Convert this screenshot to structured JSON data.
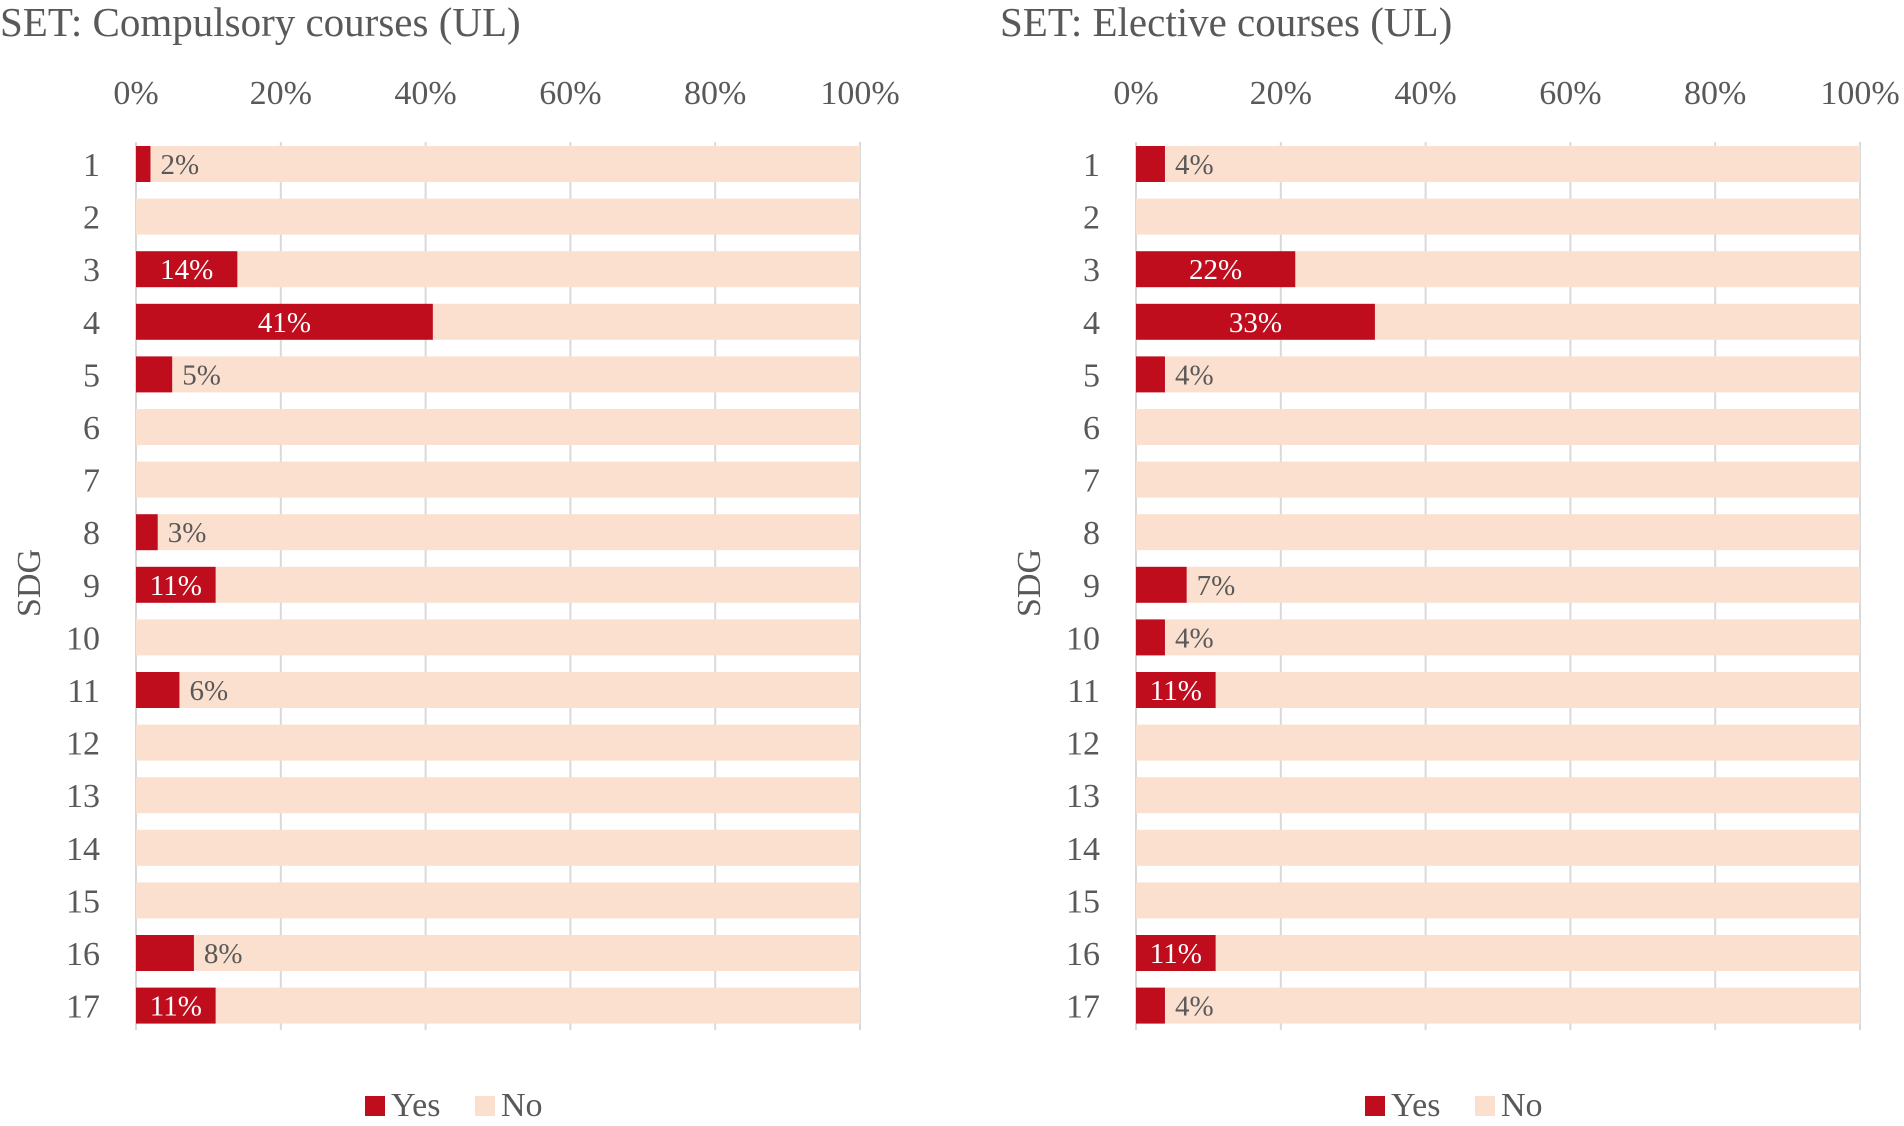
{
  "colors": {
    "yes": "#C00D1E",
    "no": "#FBE0CF",
    "grid": "#D9D9D9",
    "text": "#595959",
    "label_on_bar": "#FFFFFF"
  },
  "chart_data": [
    {
      "type": "bar",
      "orientation": "horizontal",
      "stacked": true,
      "title": "SET: Compulsory courses (UL)",
      "xlabel": "",
      "ylabel": "SDG",
      "xlim": [
        0,
        100
      ],
      "x_ticks": [
        "0%",
        "20%",
        "40%",
        "60%",
        "80%",
        "100%"
      ],
      "categories": [
        "1",
        "2",
        "3",
        "4",
        "5",
        "6",
        "7",
        "8",
        "9",
        "10",
        "11",
        "12",
        "13",
        "14",
        "15",
        "16",
        "17"
      ],
      "series": [
        {
          "name": "Yes",
          "values": [
            2,
            0,
            14,
            41,
            5,
            0,
            0,
            3,
            11,
            0,
            6,
            0,
            0,
            0,
            0,
            8,
            11
          ]
        },
        {
          "name": "No",
          "values": [
            98,
            100,
            86,
            59,
            95,
            100,
            100,
            97,
            89,
            100,
            94,
            100,
            100,
            100,
            100,
            92,
            89
          ]
        }
      ],
      "data_labels": [
        "2%",
        "",
        "14%",
        "41%",
        "5%",
        "",
        "",
        "3%",
        "11%",
        "",
        "6%",
        "",
        "",
        "",
        "",
        "8%",
        "11%"
      ],
      "legend": {
        "position": "bottom",
        "items": [
          "Yes",
          "No"
        ]
      },
      "grid": true
    },
    {
      "type": "bar",
      "orientation": "horizontal",
      "stacked": true,
      "title": "SET: Elective courses (UL)",
      "xlabel": "",
      "ylabel": "SDG",
      "xlim": [
        0,
        100
      ],
      "x_ticks": [
        "0%",
        "20%",
        "40%",
        "60%",
        "80%",
        "100%"
      ],
      "categories": [
        "1",
        "2",
        "3",
        "4",
        "5",
        "6",
        "7",
        "8",
        "9",
        "10",
        "11",
        "12",
        "13",
        "14",
        "15",
        "16",
        "17"
      ],
      "series": [
        {
          "name": "Yes",
          "values": [
            4,
            0,
            22,
            33,
            4,
            0,
            0,
            0,
            7,
            4,
            11,
            0,
            0,
            0,
            0,
            11,
            4
          ]
        },
        {
          "name": "No",
          "values": [
            96,
            100,
            78,
            67,
            96,
            100,
            100,
            100,
            93,
            96,
            89,
            100,
            100,
            100,
            100,
            89,
            96
          ]
        }
      ],
      "data_labels": [
        "4%",
        "",
        "22%",
        "33%",
        "4%",
        "",
        "",
        "",
        "7%",
        "4%",
        "11%",
        "",
        "",
        "",
        "",
        "11%",
        "4%"
      ],
      "legend": {
        "position": "bottom",
        "items": [
          "Yes",
          "No"
        ]
      },
      "grid": true
    }
  ]
}
